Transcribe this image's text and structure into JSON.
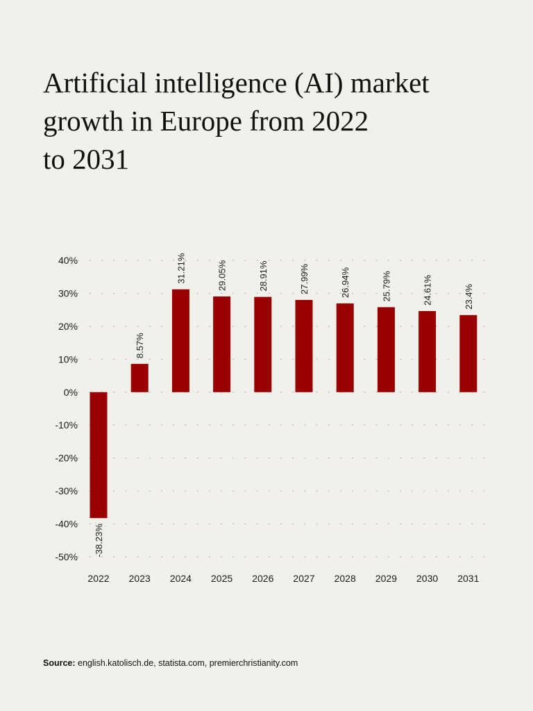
{
  "title_lines": [
    "Artificial intelligence (AI) market",
    "growth in Europe from 2022",
    "to 2031"
  ],
  "colors": {
    "background": "#f2f0eb",
    "bar": "#990000",
    "grid": "#b8b4ac",
    "text": "#1a1a1a"
  },
  "chart_data": {
    "type": "bar",
    "title": "Artificial intelligence (AI) market growth in Europe from 2022 to 2031",
    "xlabel": "",
    "ylabel": "",
    "categories": [
      "2022",
      "2023",
      "2024",
      "2025",
      "2026",
      "2027",
      "2028",
      "2029",
      "2030",
      "2031"
    ],
    "values": [
      -38.23,
      8.57,
      31.21,
      29.05,
      28.91,
      27.99,
      26.94,
      25.79,
      24.61,
      23.4
    ],
    "data_labels": [
      "-38.23%",
      "8.57%",
      "31.21%",
      "29.05%",
      "28.91%",
      "27.99%",
      "26.94%",
      "25.79%",
      "24.61%",
      "23.4%"
    ],
    "ylim": [
      -50,
      40
    ],
    "yticks": [
      40,
      30,
      20,
      10,
      0,
      -10,
      -20,
      -30,
      -40,
      -50
    ],
    "ytick_labels": [
      "40%",
      "30%",
      "20%",
      "10%",
      "0%",
      "-10%",
      "-20%",
      "-30%",
      "-40%",
      "-50%"
    ],
    "grid": true,
    "legend": "none"
  },
  "source": {
    "label": "Source:",
    "text": "english.katolisch.de, statista.com, premierchristianity.com"
  }
}
